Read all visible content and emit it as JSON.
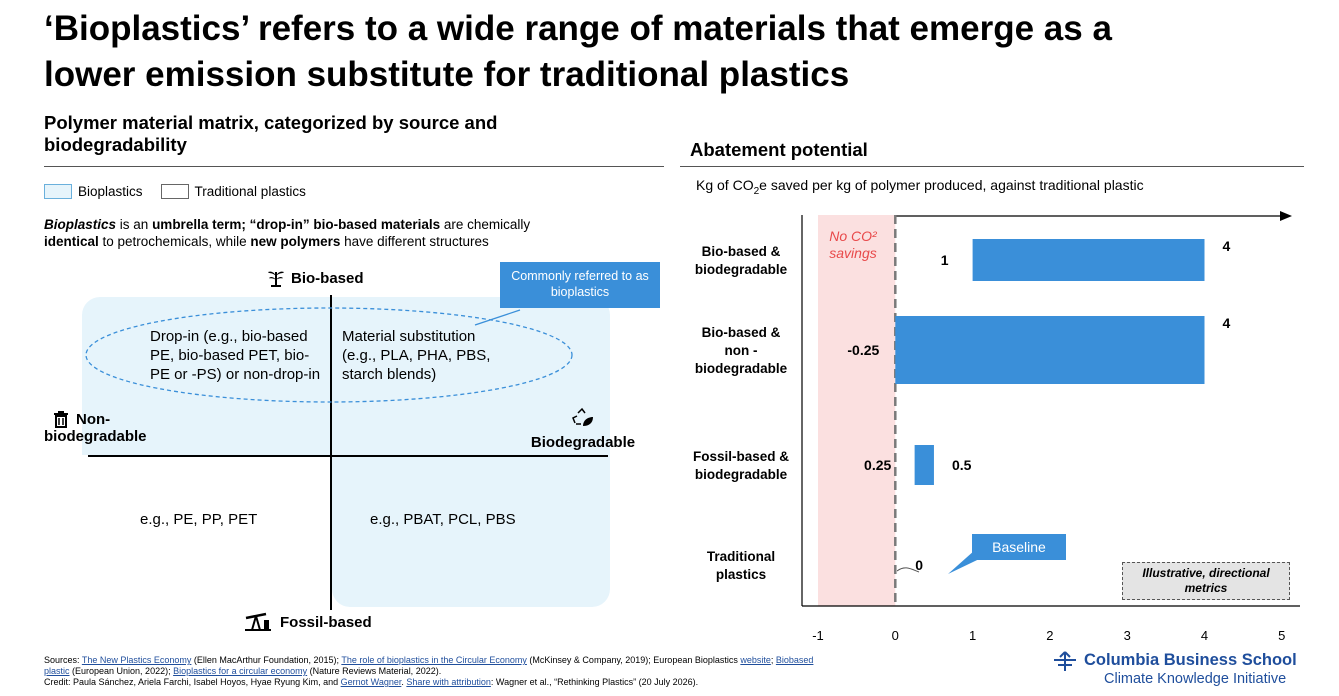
{
  "title_line1": "‘Bioplastics’ refers to a wide range of materials that emerge as a",
  "title_line2": "lower emission substitute for traditional plastics",
  "left_panel": {
    "heading_line1": "Polymer material matrix, categorized by source and",
    "heading_line2": "biodegradability",
    "legend": {
      "bioplastics": "Bioplastics",
      "traditional": "Traditional plastics"
    },
    "desc": {
      "p1_bi": "Bioplastics",
      "p1_a": " is an ",
      "p1_b": "umbrella term; “drop-in” bio-based materials",
      "p1_c": " are chemically",
      "p2_b": "identical",
      "p2_a": " to petrochemicals, while ",
      "p2_c": "new polymers",
      "p2_d": " have different structures"
    },
    "axis": {
      "top": "Bio-based",
      "bottom": "Fossil-based",
      "left_line1": "Non-",
      "left_line2": "biodegradable",
      "right": "Biodegradable"
    },
    "callout": "Commonly referred to as bioplastics",
    "quadrants": {
      "top_left": "Drop-in (e.g., bio-based PE, bio-based PET, bio-PE or -PS) or non-drop-in",
      "top_right": "Material substitution (e.g., PLA, PHA, PBS, starch blends)",
      "bottom_left": "e.g.,  PE, PP, PET",
      "bottom_right": "e.g., PBAT, PCL, PBS"
    }
  },
  "right_panel": {
    "heading": "Abatement potential",
    "subtitle_a": "Kg of CO",
    "subtitle_sub": "2",
    "subtitle_b": "e saved per kg of polymer produced, against traditional plastic",
    "no_savings_line1": "No CO²",
    "no_savings_line2": "savings",
    "baseline_callout": "Baseline",
    "illustrative_line1": "Illustrative, directional",
    "illustrative_line2": "metrics"
  },
  "chart_data": {
    "type": "bar",
    "orientation": "horizontal",
    "title": "Abatement potential",
    "xlabel": "Kg of CO2e saved per kg of polymer produced, against traditional plastic",
    "xlim": [
      -1,
      5
    ],
    "xticks": [
      "-1",
      "0",
      "1",
      "2",
      "3",
      "4",
      "5"
    ],
    "categories": [
      {
        "label": "Bio-based & biodegradable",
        "lines": [
          "Bio-based &",
          "biodegradable"
        ],
        "low": 1,
        "high": 4,
        "low_label": "1",
        "high_label": "4"
      },
      {
        "label": "Bio-based & non - biodegradable",
        "lines": [
          "Bio-based &",
          "non -",
          "biodegradable"
        ],
        "low": -0.25,
        "high": 4,
        "low_label": "-0.25",
        "high_label": "4"
      },
      {
        "label": "Fossil-based & biodegradable",
        "lines": [
          "Fossil-based &",
          "biodegradable"
        ],
        "low": 0.25,
        "high": 0.5,
        "low_label": "0.25",
        "high_label": "0.5"
      },
      {
        "label": "Traditional plastics",
        "lines": [
          "Traditional",
          "plastics"
        ],
        "low": 0,
        "high": 0,
        "low_label": "0",
        "high_label": ""
      }
    ],
    "colors": {
      "bar": "#3a8fd9",
      "no_savings_band": "#fbe0e0",
      "bioplastic_fill": "#e6f4fb"
    }
  },
  "footer": {
    "s0": "Sources: ",
    "l1": "The New Plastics Economy",
    "s1": " (Ellen MacArthur Foundation, 2015); ",
    "l2": "The role of bioplastics in the Circular Economy",
    "s2": " (McKinsey & Company, 2019); European Bioplastics ",
    "l3": "website",
    "s3": "; ",
    "l4": "Biobased",
    "l5": "plastic",
    "s5": " (European Union, 2022); ",
    "l6": "Bioplastics for a circular economy",
    "s6": " (Nature Reviews Material, 2022).",
    "c0": "Credit: Paula Sánchez, Ariela Farchi, Isabel Hoyos, Hyae Ryung Kim, and ",
    "l7": "Gernot Wagner",
    "c1": ". ",
    "l8": "Share with attribution",
    "c2": ": Wagner et al., “Rethinking Plastics” (20 July 2026)."
  },
  "logo": {
    "line1": "Columbia Business School",
    "line2": "Climate Knowledge Initiative"
  }
}
